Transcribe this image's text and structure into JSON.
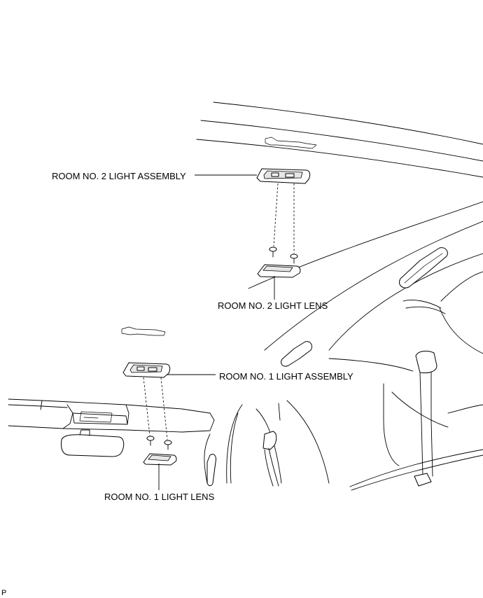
{
  "labels": {
    "room2_assembly": "ROOM NO. 2 LIGHT ASSEMBLY",
    "room2_lens": "ROOM NO. 2 LIGHT LENS",
    "room1_assembly": "ROOM NO. 1 LIGHT ASSEMBLY",
    "room1_lens": "ROOM NO. 1 LIGHT LENS"
  },
  "code": "P"
}
